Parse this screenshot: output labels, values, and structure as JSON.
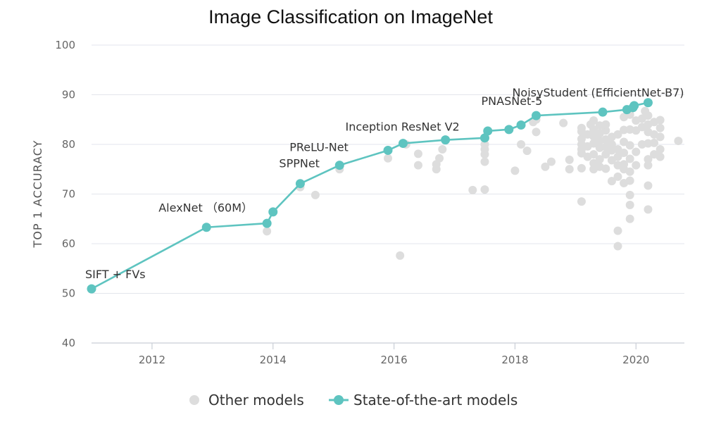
{
  "chart_data": {
    "type": "scatter",
    "title": "Image Classification on ImageNet",
    "xlabel": "",
    "ylabel": "TOP 1 ACCURACY",
    "xlim": [
      2011.0,
      2020.8
    ],
    "ylim": [
      40,
      100
    ],
    "x_ticks": [
      2012,
      2014,
      2016,
      2018,
      2020
    ],
    "y_ticks": [
      40,
      50,
      60,
      70,
      80,
      90,
      100
    ],
    "grid": "horizontal",
    "legend_position": "bottom",
    "legend": [
      {
        "label": "Other models",
        "color": "#dddddd",
        "marker": "dot"
      },
      {
        "label": "State-of-the-art models",
        "color": "#5ec4c0",
        "marker": "line-dot"
      }
    ],
    "series": [
      {
        "name": "Other models",
        "color": "#dddddd",
        "points": [
          [
            2013.9,
            62.5
          ],
          [
            2014.45,
            71.4
          ],
          [
            2014.7,
            69.8
          ],
          [
            2015.1,
            75.0
          ],
          [
            2015.9,
            77.2
          ],
          [
            2016.1,
            57.6
          ],
          [
            2016.2,
            80.0
          ],
          [
            2016.4,
            78.1
          ],
          [
            2016.4,
            75.8
          ],
          [
            2016.7,
            76.0
          ],
          [
            2016.7,
            75.0
          ],
          [
            2016.75,
            77.2
          ],
          [
            2016.8,
            79.0
          ],
          [
            2017.3,
            70.8
          ],
          [
            2017.5,
            70.9
          ],
          [
            2017.5,
            76.5
          ],
          [
            2017.5,
            78.0
          ],
          [
            2017.5,
            79.0
          ],
          [
            2017.5,
            80.0
          ],
          [
            2018.0,
            74.7
          ],
          [
            2018.1,
            80.0
          ],
          [
            2018.2,
            78.7
          ],
          [
            2018.3,
            84.5
          ],
          [
            2018.35,
            82.5
          ],
          [
            2018.35,
            85.0
          ],
          [
            2018.5,
            75.5
          ],
          [
            2018.6,
            76.5
          ],
          [
            2018.8,
            84.3
          ],
          [
            2018.9,
            76.9
          ],
          [
            2018.9,
            75.0
          ],
          [
            2019.1,
            68.5
          ],
          [
            2019.1,
            75.2
          ],
          [
            2019.1,
            78.2
          ],
          [
            2019.1,
            79.0
          ],
          [
            2019.1,
            80.0
          ],
          [
            2019.1,
            81.1
          ],
          [
            2019.1,
            82.6
          ],
          [
            2019.1,
            83.3
          ],
          [
            2019.2,
            77.5
          ],
          [
            2019.2,
            79.6
          ],
          [
            2019.2,
            82.0
          ],
          [
            2019.25,
            84.0
          ],
          [
            2019.3,
            75.0
          ],
          [
            2019.3,
            76.2
          ],
          [
            2019.3,
            78.0
          ],
          [
            2019.3,
            80.2
          ],
          [
            2019.3,
            81.6
          ],
          [
            2019.3,
            83.0
          ],
          [
            2019.3,
            84.8
          ],
          [
            2019.4,
            75.5
          ],
          [
            2019.4,
            77.0
          ],
          [
            2019.4,
            79.3
          ],
          [
            2019.4,
            80.7
          ],
          [
            2019.4,
            82.2
          ],
          [
            2019.4,
            83.8
          ],
          [
            2019.5,
            75.1
          ],
          [
            2019.5,
            78.0
          ],
          [
            2019.5,
            79.5
          ],
          [
            2019.5,
            81.0
          ],
          [
            2019.5,
            82.8
          ],
          [
            2019.5,
            84.0
          ],
          [
            2019.6,
            72.6
          ],
          [
            2019.6,
            76.8
          ],
          [
            2019.6,
            78.8
          ],
          [
            2019.6,
            80.0
          ],
          [
            2019.6,
            81.5
          ],
          [
            2019.7,
            62.6
          ],
          [
            2019.7,
            59.5
          ],
          [
            2019.7,
            73.5
          ],
          [
            2019.7,
            75.8
          ],
          [
            2019.7,
            77.5
          ],
          [
            2019.7,
            79.0
          ],
          [
            2019.7,
            82.0
          ],
          [
            2019.8,
            72.2
          ],
          [
            2019.8,
            75.0
          ],
          [
            2019.8,
            76.0
          ],
          [
            2019.8,
            78.3
          ],
          [
            2019.8,
            80.5
          ],
          [
            2019.8,
            82.9
          ],
          [
            2019.8,
            85.5
          ],
          [
            2019.9,
            65.0
          ],
          [
            2019.9,
            67.8
          ],
          [
            2019.9,
            69.8
          ],
          [
            2019.9,
            72.7
          ],
          [
            2019.9,
            74.5
          ],
          [
            2019.9,
            77.1
          ],
          [
            2019.9,
            79.8
          ],
          [
            2019.9,
            83.0
          ],
          [
            2019.9,
            86.0
          ],
          [
            2020.0,
            75.8
          ],
          [
            2020.0,
            78.5
          ],
          [
            2020.0,
            82.8
          ],
          [
            2020.0,
            84.8
          ],
          [
            2020.1,
            80.0
          ],
          [
            2020.1,
            83.5
          ],
          [
            2020.1,
            85.2
          ],
          [
            2020.15,
            86.7
          ],
          [
            2020.2,
            66.9
          ],
          [
            2020.2,
            71.7
          ],
          [
            2020.2,
            75.8
          ],
          [
            2020.2,
            77.0
          ],
          [
            2020.2,
            80.2
          ],
          [
            2020.2,
            82.5
          ],
          [
            2020.2,
            84.0
          ],
          [
            2020.2,
            85.8
          ],
          [
            2020.3,
            78.0
          ],
          [
            2020.3,
            80.3
          ],
          [
            2020.3,
            82.0
          ],
          [
            2020.3,
            84.5
          ],
          [
            2020.4,
            77.5
          ],
          [
            2020.4,
            79.0
          ],
          [
            2020.4,
            81.5
          ],
          [
            2020.4,
            83.3
          ],
          [
            2020.4,
            84.9
          ],
          [
            2020.7,
            80.7
          ]
        ]
      },
      {
        "name": "State-of-the-art models",
        "color": "#5ec4c0",
        "points": [
          [
            2011.0,
            50.9
          ],
          [
            2012.9,
            63.3
          ],
          [
            2013.9,
            64.1
          ],
          [
            2014.0,
            66.4
          ],
          [
            2014.45,
            72.1
          ],
          [
            2015.1,
            75.8
          ],
          [
            2015.9,
            78.8
          ],
          [
            2016.15,
            80.2
          ],
          [
            2016.85,
            80.9
          ],
          [
            2017.5,
            81.3
          ],
          [
            2017.55,
            82.7
          ],
          [
            2017.9,
            83.0
          ],
          [
            2018.1,
            83.9
          ],
          [
            2018.35,
            85.8
          ],
          [
            2019.45,
            86.5
          ],
          [
            2019.85,
            87.0
          ],
          [
            2019.95,
            87.4
          ],
          [
            2019.97,
            87.8
          ],
          [
            2020.2,
            88.4
          ]
        ]
      }
    ],
    "annotations": [
      {
        "text": "SIFT + FVs",
        "x": 2011.0,
        "y": 50.9
      },
      {
        "text": "AlexNet （60M）",
        "x": 2012.9,
        "y": 63.3
      },
      {
        "text": "SPPNet",
        "x": 2014.45,
        "y": 72.1
      },
      {
        "text": "PReLU-Net",
        "x": 2015.1,
        "y": 75.8
      },
      {
        "text": "Inception ResNet V2",
        "x": 2016.15,
        "y": 80.2
      },
      {
        "text": "PNASNet-5",
        "x": 2018.35,
        "y": 85.8
      },
      {
        "text": "NoisyStudent (EfficientNet-B7)",
        "x": 2020.2,
        "y": 88.4
      }
    ]
  }
}
